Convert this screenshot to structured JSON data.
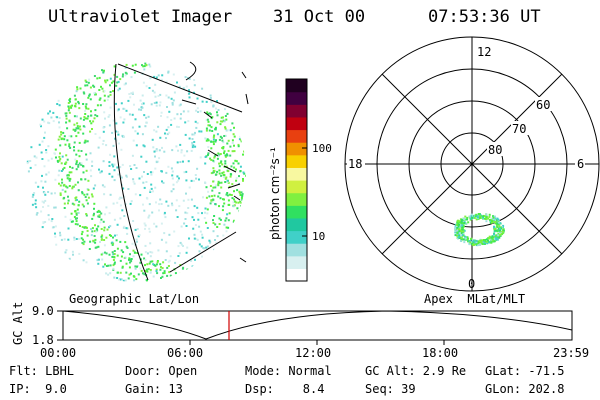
{
  "header": {
    "instrument": "Ultraviolet Imager",
    "date": "31 Oct 00",
    "time": "07:53:36 UT"
  },
  "colorbar": {
    "unit_label": "photon cm⁻²s⁻¹",
    "tick_100": "100",
    "tick_10": "10",
    "colors": [
      "#ffffff",
      "#d8f0f0",
      "#a0e0e0",
      "#40d0c8",
      "#20c8a0",
      "#30e060",
      "#80f040",
      "#d0f040",
      "#f8f8a0",
      "#f8d000",
      "#f09000",
      "#e84010",
      "#c00010",
      "#800030",
      "#400040",
      "#200020"
    ]
  },
  "polar": {
    "mlt_top": "12",
    "mlt_bottom": "0",
    "mlt_left": "18",
    "mlt_right": "6",
    "lat_60": "60",
    "lat_70": "70",
    "lat_80": "80"
  },
  "timeline": {
    "left_label": "Geographic Lat/Lon",
    "right_label": "Apex  MLat/MLT",
    "y_axis_label": "GC Alt",
    "y_top": "9.0",
    "y_bottom": "1.8",
    "x_ticks": [
      "00:00",
      "06:00",
      "12:00",
      "18:00",
      "23:59"
    ],
    "current_time_color": "#d00000"
  },
  "footer": {
    "flt": "Flt: LBHL",
    "ip": "IP:  9.0",
    "door": "Door: Open",
    "gain": "Gain: 13",
    "mode": "Mode: Normal",
    "dsp": "Dsp:    8.4",
    "gcalt": "GC Alt: 2.9 Re",
    "seq": "Seq: 39",
    "glat": "GLat: -71.5",
    "glon": "GLon: 202.8"
  }
}
